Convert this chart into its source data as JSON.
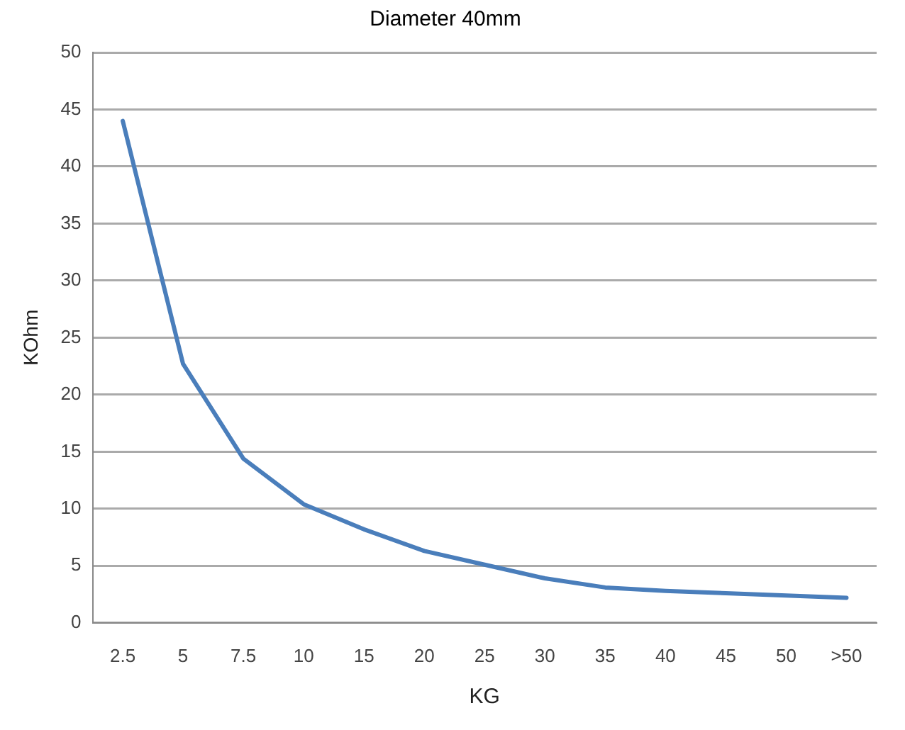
{
  "chart_data": {
    "type": "line",
    "title": "Diameter 40mm",
    "xlabel": "KG",
    "ylabel": "KOhm",
    "categories": [
      "2.5",
      "5",
      "7.5",
      "10",
      "15",
      "20",
      "25",
      "30",
      "35",
      "40",
      "45",
      "50",
      ">50"
    ],
    "series": [
      {
        "color": "#4a7ebb",
        "values": [
          44,
          22.7,
          14.4,
          10.4,
          8.2,
          6.3,
          5.1,
          3.9,
          3.1,
          2.8,
          2.6,
          2.4,
          2.2
        ]
      }
    ],
    "ylim": [
      0,
      50
    ],
    "yticks": [
      0,
      5,
      10,
      15,
      20,
      25,
      30,
      35,
      40,
      45,
      50
    ],
    "grid": "y",
    "legend": false,
    "marker": "none",
    "line_style": "solid"
  }
}
